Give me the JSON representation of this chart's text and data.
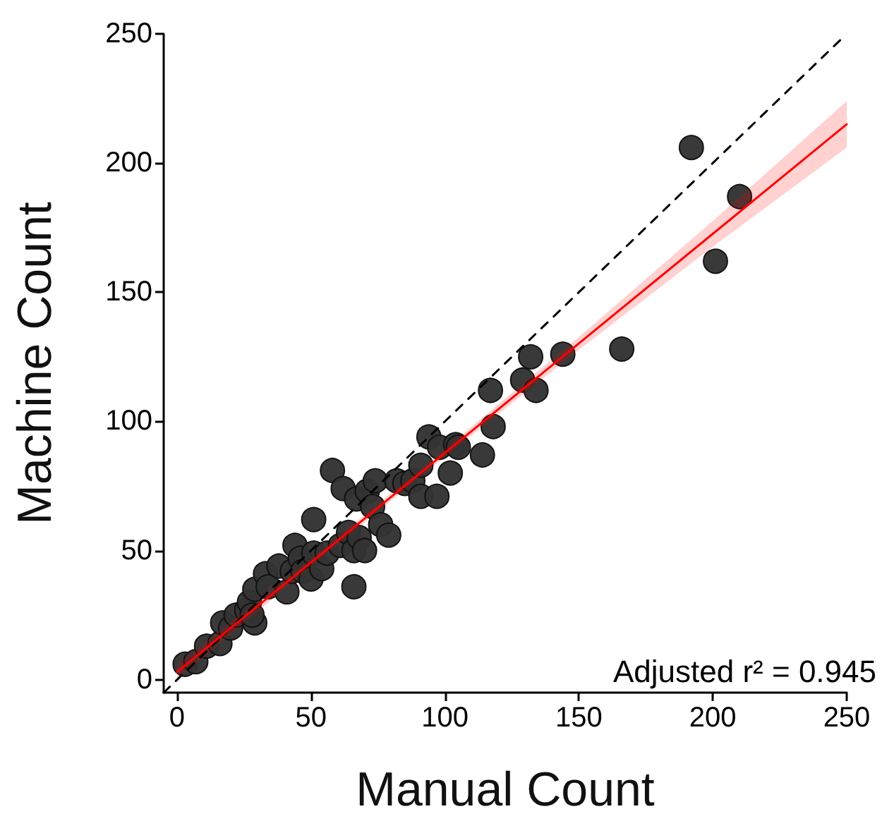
{
  "chart_data": {
    "type": "scatter",
    "xlabel": "Manual Count",
    "ylabel": "Machine Count",
    "annotations": [
      "Adjusted r² = 0.945"
    ],
    "xlim": [
      -5,
      250
    ],
    "ylim": [
      -5,
      250
    ],
    "xticks": [
      0,
      50,
      100,
      150,
      200,
      250
    ],
    "yticks": [
      0,
      50,
      100,
      150,
      200,
      250
    ],
    "grid": false,
    "marker": "circle",
    "series": [
      {
        "type": "line",
        "color": "#000000",
        "line_style": "dashed",
        "marker": "none",
        "x": [
          -5,
          248
        ],
        "values": [
          -5,
          248
        ]
      },
      {
        "type": "line",
        "color": "#ff0000",
        "line_style": "solid",
        "marker": "none",
        "x": [
          0,
          50,
          100,
          150,
          200,
          250
        ],
        "values": [
          3,
          45.4,
          87.8,
          130.2,
          172.6,
          215
        ],
        "lower": [
          0,
          43.9,
          86.3,
          127.7,
          167.6,
          206
        ],
        "upper": [
          6,
          46.9,
          89.3,
          132.7,
          177.6,
          224
        ]
      },
      {
        "color": "#333333",
        "x": [
          3,
          7,
          11,
          16,
          17,
          20,
          22,
          26,
          27,
          29,
          29,
          28,
          33,
          34,
          38,
          41,
          44,
          43,
          46,
          47,
          50,
          51,
          51,
          54,
          56,
          58,
          62,
          61,
          64,
          66,
          66,
          68,
          70,
          67,
          71,
          74,
          73,
          76,
          79,
          82,
          85,
          88,
          91,
          94,
          91,
          97,
          98,
          102,
          104,
          105,
          114,
          117,
          118,
          129,
          132,
          134,
          144,
          166,
          192,
          201,
          210
        ],
        "values": [
          6,
          7,
          13,
          14,
          22,
          20,
          25,
          27,
          30,
          35,
          22,
          25,
          41,
          36,
          44,
          34,
          52,
          42,
          47,
          42,
          39,
          49,
          62,
          43,
          49,
          81,
          74,
          52,
          57,
          36,
          50,
          55,
          50,
          70,
          73,
          77,
          67,
          60,
          56,
          77,
          76,
          77,
          83,
          94,
          71,
          71,
          90,
          80,
          91,
          90,
          87,
          112,
          98,
          116,
          125,
          112,
          126,
          128,
          206,
          162,
          187
        ]
      }
    ]
  }
}
